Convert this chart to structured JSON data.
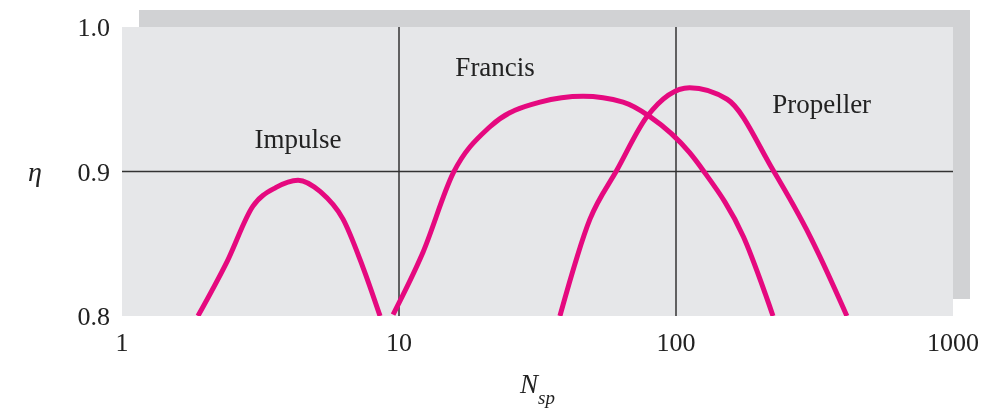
{
  "chart_data": {
    "type": "line",
    "xlabel": "N$_{sp}$",
    "ylabel": "η",
    "log": "x",
    "xlim": [
      1,
      1000
    ],
    "xticks": [
      1,
      10,
      100,
      1000
    ],
    "ylim": [
      0.8,
      1.0
    ],
    "yticks": [
      0.8,
      0.9,
      {
        "value": 1.0,
        "label": "1.0"
      }
    ],
    "grid": true,
    "marker": "none",
    "line_style": "solid",
    "series": [
      {
        "name": "Impulse",
        "color": "#e5097f",
        "x": [
          1.88,
          2.4,
          2.97,
          3.6,
          4.32,
          5.2,
          6.28,
          7.4,
          8.54
        ],
        "values": [
          0.8,
          0.838,
          0.876,
          0.889,
          0.894,
          0.886,
          0.867,
          0.834,
          0.8
        ]
      },
      {
        "name": "Francis",
        "color": "#e5097f",
        "x": [
          9.52,
          12.2,
          15.7,
          21.3,
          32.3,
          46.2,
          64.4,
          80.5,
          112,
          125,
          175,
          224
        ],
        "values": [
          0.801,
          0.844,
          0.899,
          0.931,
          0.948,
          0.952,
          0.948,
          0.938,
          0.913,
          0.901,
          0.855,
          0.8
        ]
      },
      {
        "name": "Propeller",
        "color": "#e5097f",
        "x": [
          38.1,
          48.9,
          61.2,
          78.6,
          112,
          153,
          224,
          305,
          414
        ],
        "values": [
          0.8,
          0.867,
          0.901,
          0.938,
          0.958,
          0.95,
          0.901,
          0.855,
          0.8
        ]
      }
    ]
  }
}
